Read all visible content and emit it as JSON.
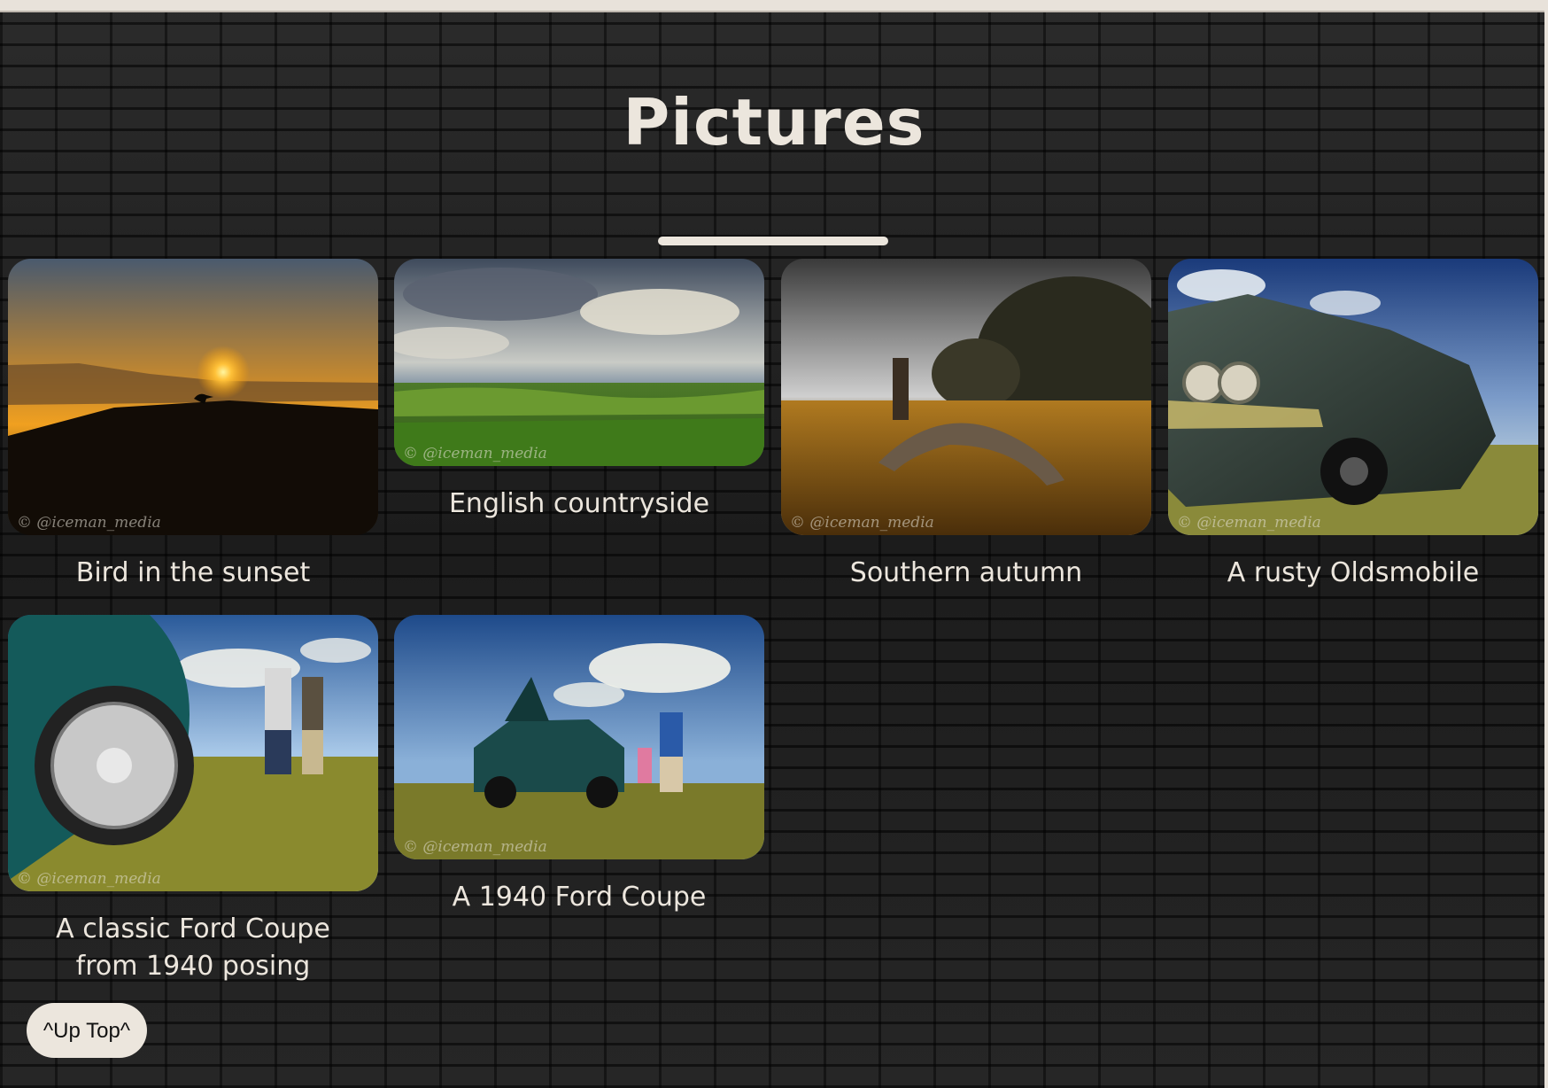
{
  "page": {
    "title": "Pictures",
    "up_top_label": "^Up Top^"
  },
  "gallery": {
    "watermark": "© @iceman_media",
    "items": [
      {
        "caption": "Bird in the sunset"
      },
      {
        "caption": "English countryside"
      },
      {
        "caption": "Southern autumn"
      },
      {
        "caption": "A rusty Oldsmobile"
      },
      {
        "caption": "A classic Ford Coupe from 1940 posing"
      },
      {
        "caption": "A 1940 Ford Coupe"
      }
    ]
  },
  "colors": {
    "text": "#ece6dd",
    "button_bg": "#ece6dd",
    "background": "#222222"
  }
}
